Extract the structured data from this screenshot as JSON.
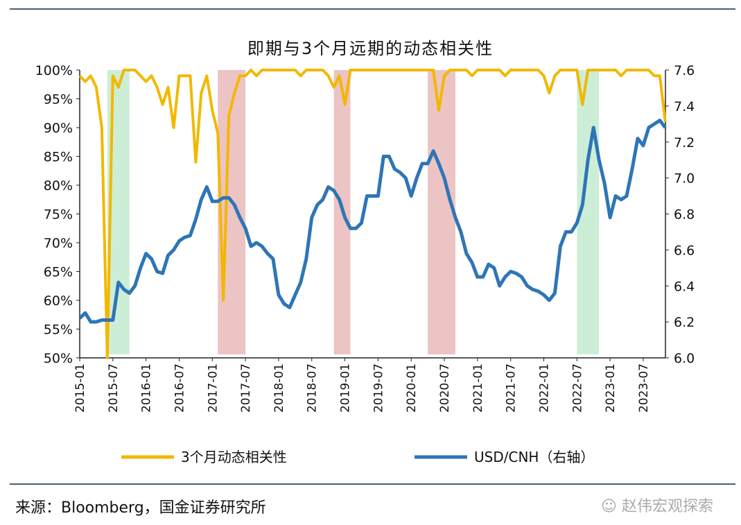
{
  "chart_data": {
    "type": "line",
    "title": "即期与3个月远期的动态相关性",
    "x_tick_labels": [
      "2015-01",
      "2015-07",
      "2016-01",
      "2016-07",
      "2017-01",
      "2017-07",
      "2018-01",
      "2018-07",
      "2019-01",
      "2019-07",
      "2020-01",
      "2020-07",
      "2021-01",
      "2021-07",
      "2022-01",
      "2022-07",
      "2023-01",
      "2023-07"
    ],
    "x_start": "2015-01",
    "left_axis": {
      "ylim": [
        50,
        100
      ],
      "ticks": [
        "50%",
        "55%",
        "60%",
        "65%",
        "70%",
        "75%",
        "80%",
        "85%",
        "90%",
        "95%",
        "100%"
      ]
    },
    "right_axis": {
      "ylim": [
        6.0,
        7.6
      ],
      "ticks": [
        "6.0",
        "6.2",
        "6.4",
        "6.6",
        "6.8",
        "7.0",
        "7.2",
        "7.4",
        "7.6"
      ]
    },
    "series": [
      {
        "name": "3个月动态相关性",
        "axis": "left",
        "color": "#f2b800",
        "values": [
          99,
          98,
          99,
          97,
          90,
          50,
          99,
          97,
          100,
          100,
          100,
          99,
          98,
          99,
          97,
          94,
          97,
          90,
          99,
          99,
          99,
          84,
          96,
          99,
          93,
          89,
          60,
          92,
          96,
          99,
          99,
          100,
          99,
          100,
          100,
          100,
          100,
          100,
          100,
          100,
          99,
          100,
          100,
          100,
          100,
          99,
          97,
          99,
          94,
          100,
          100,
          100,
          100,
          100,
          100,
          100,
          100,
          100,
          100,
          100,
          100,
          100,
          100,
          100,
          100,
          93,
          99,
          100,
          100,
          100,
          100,
          99,
          100,
          100,
          100,
          100,
          100,
          99,
          100,
          100,
          100,
          100,
          100,
          100,
          99,
          96,
          99,
          100,
          100,
          100,
          100,
          94,
          100,
          100,
          100,
          100,
          100,
          100,
          99,
          100,
          100,
          100,
          100,
          100,
          99,
          99,
          91
        ]
      },
      {
        "name": "USD/CNH（右轴）",
        "axis": "right",
        "color": "#2e75b6",
        "values": [
          6.22,
          6.25,
          6.2,
          6.2,
          6.21,
          6.21,
          6.21,
          6.42,
          6.38,
          6.36,
          6.4,
          6.5,
          6.58,
          6.55,
          6.48,
          6.47,
          6.57,
          6.6,
          6.65,
          6.67,
          6.68,
          6.77,
          6.88,
          6.95,
          6.87,
          6.87,
          6.89,
          6.89,
          6.85,
          6.78,
          6.72,
          6.62,
          6.64,
          6.62,
          6.58,
          6.55,
          6.35,
          6.3,
          6.28,
          6.35,
          6.42,
          6.55,
          6.78,
          6.85,
          6.88,
          6.95,
          6.93,
          6.88,
          6.78,
          6.72,
          6.72,
          6.75,
          6.9,
          6.9,
          6.9,
          7.12,
          7.12,
          7.05,
          7.03,
          7.0,
          6.9,
          7.0,
          7.08,
          7.08,
          7.15,
          7.08,
          7.0,
          6.88,
          6.78,
          6.7,
          6.58,
          6.53,
          6.45,
          6.45,
          6.52,
          6.5,
          6.4,
          6.45,
          6.48,
          6.47,
          6.45,
          6.4,
          6.38,
          6.37,
          6.35,
          6.32,
          6.36,
          6.62,
          6.7,
          6.7,
          6.75,
          6.85,
          7.1,
          7.28,
          7.1,
          6.97,
          6.78,
          6.9,
          6.88,
          6.9,
          7.05,
          7.22,
          7.18,
          7.28,
          7.3,
          7.32,
          7.28
        ]
      }
    ],
    "shaded_periods": [
      {
        "from": "2015-06",
        "to": "2015-10",
        "color": "#cdeed6"
      },
      {
        "from": "2017-02",
        "to": "2017-07",
        "color": "#ecc4c4"
      },
      {
        "from": "2018-11",
        "to": "2019-02",
        "color": "#ecc4c4"
      },
      {
        "from": "2020-04",
        "to": "2020-09",
        "color": "#ecc4c4"
      },
      {
        "from": "2022-07",
        "to": "2022-11",
        "color": "#cdeed6"
      }
    ],
    "legend_position": "bottom",
    "grid": false
  },
  "source": "来源：Bloomberg，国金证券研究所",
  "watermark": "赵伟宏观探索"
}
